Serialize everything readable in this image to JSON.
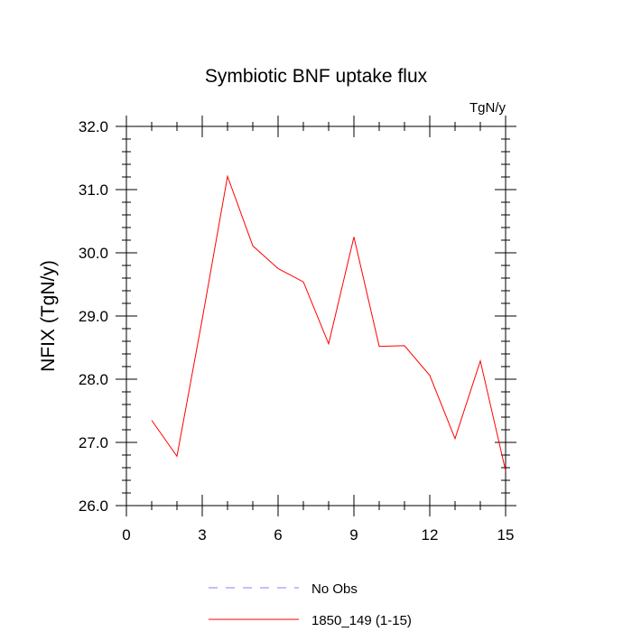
{
  "chart_data": {
    "type": "line",
    "title": "Symbiotic BNF uptake flux",
    "units": "TgN/y",
    "ylabel": "NFIX  (TgN/y)",
    "xlabel": "",
    "xlim": [
      0,
      15
    ],
    "ylim": [
      26.0,
      32.0
    ],
    "x_ticks": [
      0,
      3,
      6,
      9,
      12,
      15
    ],
    "y_ticks": [
      "26.0",
      "27.0",
      "28.0",
      "29.0",
      "30.0",
      "31.0",
      "32.0"
    ],
    "grid": false,
    "series": [
      {
        "name": "1850_149 (1-15)",
        "color": "#ff0000",
        "style": "solid",
        "x": [
          1,
          2,
          3,
          4,
          5,
          6,
          7,
          8,
          9,
          10,
          11,
          12,
          13,
          14,
          15
        ],
        "values": [
          27.35,
          26.78,
          28.95,
          31.21,
          30.11,
          29.75,
          29.54,
          28.56,
          30.25,
          28.52,
          28.53,
          28.06,
          27.06,
          28.29,
          26.55
        ]
      }
    ],
    "legend": {
      "position": "bottom-center",
      "entries": [
        {
          "label": "No Obs",
          "color": "#8080ff",
          "style": "dashed"
        },
        {
          "label": "1850_149 (1-15)",
          "color": "#ff0000",
          "style": "solid"
        }
      ]
    }
  }
}
